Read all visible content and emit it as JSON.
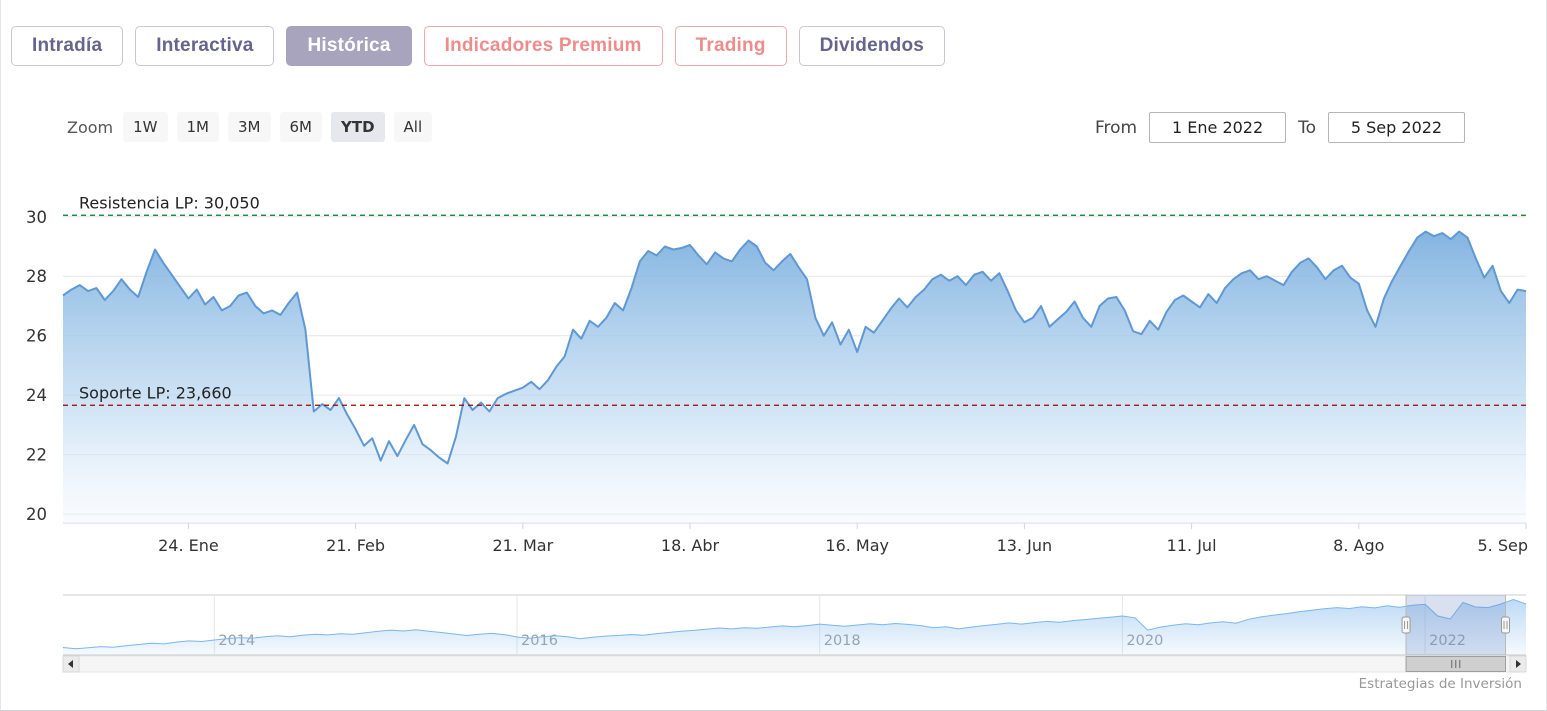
{
  "tabs": {
    "items": [
      {
        "label": "Intradía",
        "style": "default",
        "active": false
      },
      {
        "label": "Interactiva",
        "style": "default",
        "active": false
      },
      {
        "label": "Histórica",
        "style": "default",
        "active": true
      },
      {
        "label": "Indicadores Premium",
        "style": "premium",
        "active": false
      },
      {
        "label": "Trading",
        "style": "premium",
        "active": false
      },
      {
        "label": "Dividendos",
        "style": "default",
        "active": false
      }
    ]
  },
  "theme": {
    "accent_purple": "#a8a4bd",
    "accent_salmon": "#ee8c8c",
    "chart_blue": "#7cb5ec"
  },
  "range_selector": {
    "zoom_label": "Zoom",
    "buttons": [
      {
        "label": "1W",
        "selected": false
      },
      {
        "label": "1M",
        "selected": false
      },
      {
        "label": "3M",
        "selected": false
      },
      {
        "label": "6M",
        "selected": false
      },
      {
        "label": "YTD",
        "selected": true
      },
      {
        "label": "All",
        "selected": false
      }
    ],
    "from_label": "From",
    "from_value": "1 Ene 2022",
    "to_label": "To",
    "to_value": "5 Sep 2022"
  },
  "chart_data": [
    {
      "id": "main",
      "type": "area",
      "title": "",
      "xlabel": "",
      "ylabel": "",
      "grid": true,
      "legend": false,
      "ylim": [
        19.7,
        30.9
      ],
      "y_ticks": [
        20,
        22,
        24,
        26,
        28,
        30
      ],
      "x_tick_labels": [
        "24. Ene",
        "21. Feb",
        "21. Mar",
        "18. Abr",
        "16. May",
        "13. Jun",
        "11. Jul",
        "8. Ago",
        "5. Sep"
      ],
      "x_tick_indices": [
        15,
        35,
        55,
        75,
        95,
        115,
        135,
        155,
        175
      ],
      "period": "YTD 2022 (1 Ene 2022 - 5 Sep 2022), daily closes, estimated from plot",
      "values": [
        27.35,
        27.55,
        27.7,
        27.5,
        27.6,
        27.2,
        27.5,
        27.9,
        27.55,
        27.3,
        28.15,
        28.9,
        28.45,
        28.05,
        27.65,
        27.25,
        27.55,
        27.05,
        27.3,
        26.85,
        27.0,
        27.35,
        27.45,
        27.0,
        26.75,
        26.85,
        26.7,
        27.1,
        27.45,
        26.2,
        23.45,
        23.7,
        23.5,
        23.9,
        23.35,
        22.85,
        22.3,
        22.55,
        21.8,
        22.45,
        21.95,
        22.5,
        23.0,
        22.35,
        22.15,
        21.9,
        21.7,
        22.6,
        23.9,
        23.5,
        23.75,
        23.45,
        23.9,
        24.05,
        24.15,
        24.25,
        24.45,
        24.2,
        24.5,
        24.95,
        25.3,
        26.2,
        25.9,
        26.5,
        26.3,
        26.6,
        27.1,
        26.85,
        27.6,
        28.5,
        28.85,
        28.7,
        29.0,
        28.9,
        28.95,
        29.05,
        28.7,
        28.4,
        28.8,
        28.6,
        28.5,
        28.9,
        29.2,
        29.0,
        28.45,
        28.2,
        28.5,
        28.75,
        28.3,
        27.9,
        26.6,
        26.0,
        26.45,
        25.7,
        26.2,
        25.45,
        26.3,
        26.1,
        26.5,
        26.9,
        27.25,
        26.95,
        27.3,
        27.55,
        27.9,
        28.05,
        27.85,
        28.0,
        27.7,
        28.05,
        28.15,
        27.85,
        28.1,
        27.5,
        26.85,
        26.45,
        26.6,
        27.0,
        26.3,
        26.55,
        26.8,
        27.15,
        26.6,
        26.3,
        27.0,
        27.25,
        27.3,
        26.85,
        26.15,
        26.05,
        26.5,
        26.2,
        26.8,
        27.2,
        27.35,
        27.15,
        26.95,
        27.4,
        27.1,
        27.6,
        27.9,
        28.1,
        28.2,
        27.9,
        28.0,
        27.85,
        27.7,
        28.15,
        28.45,
        28.6,
        28.3,
        27.9,
        28.2,
        28.35,
        27.95,
        27.75,
        26.85,
        26.3,
        27.25,
        27.85,
        28.35,
        28.85,
        29.3,
        29.5,
        29.35,
        29.45,
        29.25,
        29.5,
        29.3,
        28.6,
        27.95,
        28.35,
        27.5,
        27.1,
        27.55,
        27.5
      ],
      "plot_lines": [
        {
          "name": "resistance",
          "label": "Resistencia LP: 30,050",
          "value": 30.05,
          "color": "#007a29",
          "style": "dashed"
        },
        {
          "name": "support",
          "label": "Soporte LP: 23,660",
          "value": 23.66,
          "color": "#a00000",
          "style": "dashed"
        }
      ],
      "line_color": "#5f98d3",
      "fill_top_color": "#79aede",
      "fill_bottom_color": "#f1f7fd"
    },
    {
      "id": "navigator",
      "type": "area",
      "title": "",
      "grid": true,
      "ylim": [
        10.5,
        30.5
      ],
      "x_tick_labels": [
        "2014",
        "2016",
        "2018",
        "2020",
        "2022"
      ],
      "x_tick_indices": [
        12,
        36,
        60,
        84,
        108
      ],
      "period": "2013 - Sep 2022, monthly, estimated from navigator strip",
      "values": [
        13.0,
        12.6,
        12.9,
        13.3,
        13.1,
        13.6,
        14.0,
        14.4,
        14.2,
        14.8,
        15.2,
        15.0,
        15.5,
        15.9,
        16.3,
        16.1,
        16.6,
        16.9,
        16.6,
        17.1,
        17.4,
        17.2,
        17.6,
        17.4,
        17.9,
        18.4,
        18.8,
        18.5,
        18.9,
        18.4,
        18.0,
        17.5,
        17.0,
        17.4,
        17.7,
        17.3,
        16.5,
        16.1,
        16.6,
        16.9,
        16.6,
        15.9,
        16.4,
        16.8,
        17.0,
        17.3,
        17.1,
        17.6,
        18.0,
        18.4,
        18.7,
        19.1,
        19.5,
        19.2,
        19.6,
        19.4,
        19.8,
        20.2,
        19.9,
        20.3,
        20.8,
        20.4,
        20.1,
        20.5,
        20.9,
        20.6,
        21.0,
        20.7,
        20.3,
        19.6,
        19.9,
        19.2,
        19.8,
        20.3,
        20.7,
        21.2,
        20.8,
        21.3,
        21.7,
        21.4,
        21.9,
        22.3,
        22.7,
        23.1,
        23.5,
        22.9,
        18.8,
        19.8,
        20.4,
        20.9,
        20.6,
        21.2,
        21.6,
        21.1,
        22.4,
        23.2,
        23.8,
        24.3,
        24.9,
        25.4,
        25.9,
        26.3,
        26.0,
        26.6,
        26.2,
        26.9,
        26.4,
        27.1,
        27.4,
        23.5,
        22.5,
        28.0,
        26.5,
        26.3,
        27.5,
        29.0,
        27.5
      ],
      "selection": {
        "start_frac": 0.918,
        "end_frac": 0.986
      },
      "line_color": "#7cb5ec"
    }
  ],
  "credits": {
    "text": "Estrategias de Inversión"
  }
}
